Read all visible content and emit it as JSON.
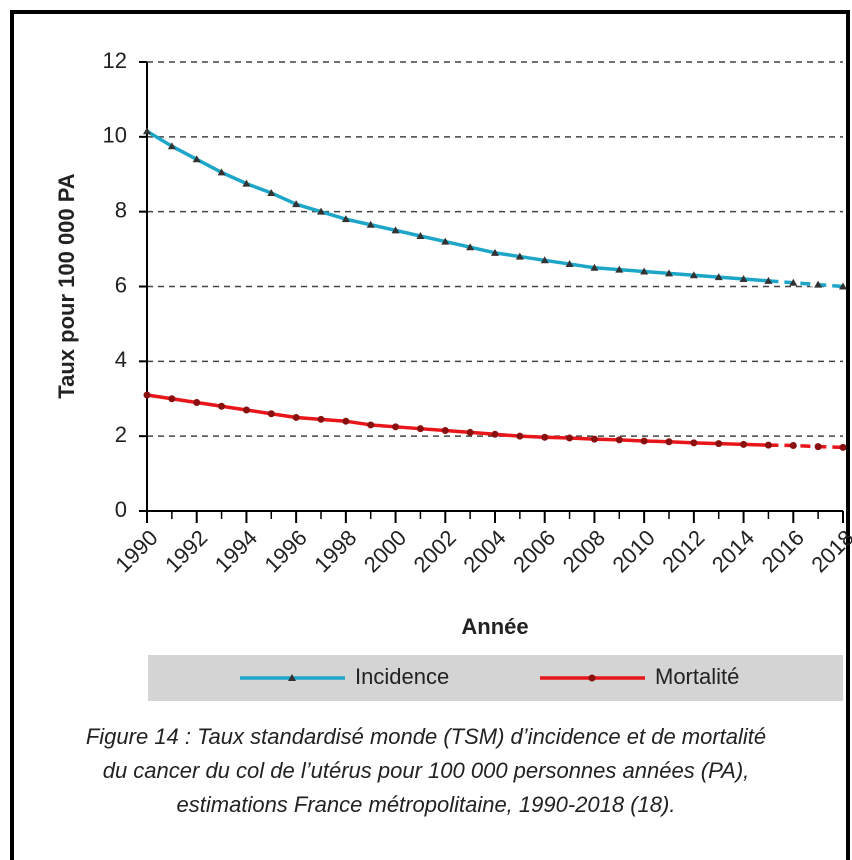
{
  "chart_data": {
    "type": "line",
    "y_label": "Taux pour 100 000 PA",
    "x_label": "Année",
    "x": [
      1990,
      1991,
      1992,
      1993,
      1994,
      1995,
      1996,
      1997,
      1998,
      1999,
      2000,
      2001,
      2002,
      2003,
      2004,
      2005,
      2006,
      2007,
      2008,
      2009,
      2010,
      2011,
      2012,
      2013,
      2014,
      2015,
      2016,
      2017,
      2018
    ],
    "series": [
      {
        "name": "Incidence",
        "color": "#1ea6c8",
        "marker": "triangle",
        "values": [
          10.15,
          9.75,
          9.4,
          9.05,
          8.75,
          8.5,
          8.2,
          8.0,
          7.8,
          7.65,
          7.5,
          7.35,
          7.2,
          7.05,
          6.9,
          6.8,
          6.7,
          6.6,
          6.5,
          6.45,
          6.4,
          6.35,
          6.3,
          6.25,
          6.2,
          6.15,
          6.1,
          6.05,
          6.0
        ]
      },
      {
        "name": "Mortalité",
        "color": "#e8161b",
        "marker": "circle",
        "values": [
          3.1,
          3.0,
          2.9,
          2.8,
          2.7,
          2.6,
          2.5,
          2.45,
          2.4,
          2.3,
          2.25,
          2.2,
          2.15,
          2.1,
          2.05,
          2.0,
          1.97,
          1.95,
          1.92,
          1.9,
          1.87,
          1.85,
          1.82,
          1.8,
          1.78,
          1.76,
          1.75,
          1.72,
          1.7
        ]
      }
    ],
    "projection_from": 2015,
    "xlim": [
      1990,
      2018
    ],
    "xticks": [
      1990,
      1992,
      1994,
      1996,
      1998,
      2000,
      2002,
      2004,
      2006,
      2008,
      2010,
      2012,
      2014,
      2016,
      2018
    ],
    "ylim": [
      0,
      12
    ],
    "yticks": [
      0,
      2,
      4,
      6,
      8,
      10,
      12
    ],
    "grid": true,
    "legend": "bottom",
    "caption": [
      "Figure 14 : Taux standardisé monde (TSM) d’incidence et de mortalité",
      "du cancer du col de l’utérus pour 100 000 personnes années (PA),",
      "estimations France métropolitaine, 1990-2018 (18)."
    ]
  }
}
